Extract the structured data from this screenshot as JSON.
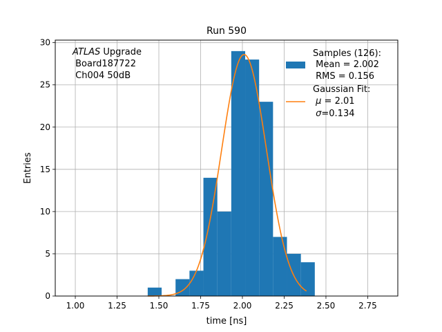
{
  "chart_data": {
    "type": "bar",
    "title": "Run 590",
    "xlabel": "time [ns]",
    "ylabel": "Entries",
    "xlim": [
      0.88,
      2.93
    ],
    "ylim": [
      0,
      30.3
    ],
    "xticks": [
      1.0,
      1.25,
      1.5,
      1.75,
      2.0,
      2.25,
      2.5,
      2.75
    ],
    "xtick_labels": [
      "1.00",
      "1.25",
      "1.50",
      "1.75",
      "2.00",
      "2.25",
      "2.50",
      "2.75"
    ],
    "yticks": [
      0,
      5,
      10,
      15,
      20,
      25,
      30
    ],
    "ytick_labels": [
      "0",
      "5",
      "10",
      "15",
      "20",
      "25",
      "30"
    ],
    "grid": true,
    "legend_position": "top-right",
    "annotation": {
      "line1_italic": "ATLAS",
      "line1_rest": " Upgrade",
      "line2": " Board187722",
      "line3": " Ch004 50dB"
    },
    "histogram": {
      "name": "Samples (126):",
      "color": "#1f77b4",
      "bin_edges": [
        1.4333,
        1.5167,
        1.6,
        1.6833,
        1.7667,
        1.85,
        1.9333,
        2.0167,
        2.1,
        2.1833,
        2.2667,
        2.35,
        2.4333
      ],
      "counts": [
        1,
        0,
        2,
        3,
        14,
        10,
        29,
        28,
        23,
        7,
        5,
        4
      ]
    },
    "fit": {
      "name": "Gaussian Fit:",
      "color": "#ff7f0e",
      "mu": 2.01,
      "sigma": 0.134,
      "amplitude": 28.6,
      "x_start": 1.4333,
      "x_end": 2.3833
    },
    "legend": {
      "samples_title": "Samples (126):",
      "samples_mean": " Mean = 2.002",
      "samples_rms": " RMS = 0.156",
      "fit_title": "Gaussian Fit:",
      "fit_mu_symbol": "μ",
      "fit_mu_value": " = 2.01",
      "fit_sigma_symbol": "σ",
      "fit_sigma_value": "=0.134"
    }
  }
}
